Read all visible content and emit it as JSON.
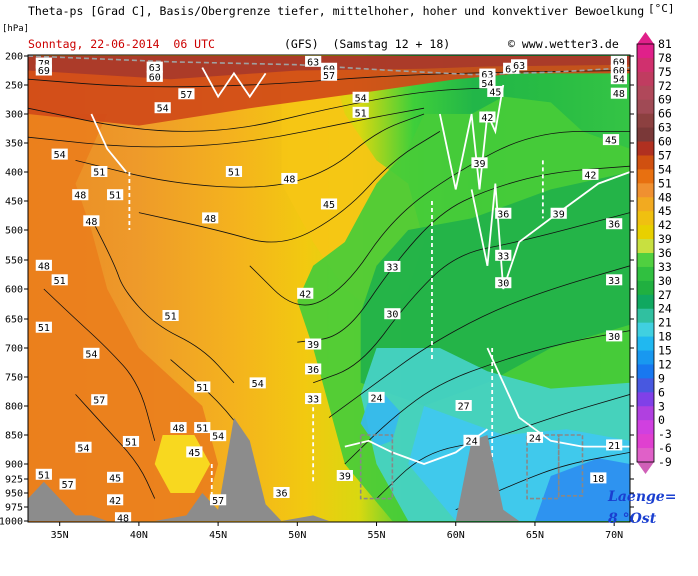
{
  "header": {
    "title": "Theta-ps [Grad C], Basis/Obergrenze tiefer, mittelhoher, hoher und konvektiver Bewoelkung",
    "date_run": "Sonntag, 22-06-2014  06 UTC",
    "model": "(GFS)  (Samstag 12 + 18)",
    "copyright": "© www.wetter3.de",
    "unit": "[°C]",
    "y_unit": "[hPa]"
  },
  "location": {
    "line1": "Laenge=",
    "line2": "8 °Ost"
  },
  "chart_data": {
    "type": "heatmap",
    "title": "Theta-ps [Grad C], Basis/Obergrenze tiefer, mittelhoher, hoher und konvektiver Bewoelkung",
    "xlabel": "",
    "ylabel": "[hPa]",
    "x_ticks": [
      "35N",
      "40N",
      "45N",
      "50N",
      "55N",
      "60N",
      "65N",
      "70N"
    ],
    "x_tick_values": [
      35,
      40,
      45,
      50,
      55,
      60,
      65,
      70
    ],
    "y_ticks": [
      200,
      250,
      300,
      350,
      400,
      450,
      500,
      550,
      600,
      650,
      700,
      750,
      800,
      850,
      900,
      925,
      950,
      975,
      1000
    ],
    "xlim": [
      33,
      71
    ],
    "ylim": [
      1000,
      200
    ],
    "colorbar": {
      "unit": "[°C]",
      "levels": [
        81,
        78,
        75,
        72,
        69,
        66,
        63,
        60,
        57,
        54,
        51,
        48,
        45,
        42,
        39,
        36,
        33,
        30,
        27,
        24,
        21,
        18,
        15,
        12,
        9,
        6,
        3,
        0,
        -3,
        -6,
        -9
      ],
      "colors": [
        "#e0208a",
        "#d0306e",
        "#c03c60",
        "#b0485a",
        "#a04a55",
        "#8c4040",
        "#7a3838",
        "#b03020",
        "#d05010",
        "#e87010",
        "#f09030",
        "#f2aa20",
        "#f0c010",
        "#e8d000",
        "#c8e040",
        "#50d040",
        "#30c040",
        "#20b040",
        "#10a860",
        "#30c0a0",
        "#40d0e0",
        "#20b8f0",
        "#1898f0",
        "#1878f0",
        "#4858e0",
        "#8040e8",
        "#b040e0",
        "#d040e0",
        "#e040d0",
        "#e060c8",
        "#d060b8"
      ]
    },
    "contour_labels": [
      {
        "x": 34.0,
        "p": 213,
        "v": 78
      },
      {
        "x": 34.0,
        "p": 225,
        "v": 69
      },
      {
        "x": 41.0,
        "p": 220,
        "v": 63
      },
      {
        "x": 41.0,
        "p": 236,
        "v": 60
      },
      {
        "x": 43.0,
        "p": 266,
        "v": 57
      },
      {
        "x": 41.5,
        "p": 290,
        "v": 54
      },
      {
        "x": 51.0,
        "p": 210,
        "v": 63
      },
      {
        "x": 52.0,
        "p": 222,
        "v": 60
      },
      {
        "x": 52.0,
        "p": 234,
        "v": 57
      },
      {
        "x": 54.0,
        "p": 272,
        "v": 54
      },
      {
        "x": 54.0,
        "p": 298,
        "v": 51
      },
      {
        "x": 62.0,
        "p": 232,
        "v": 63
      },
      {
        "x": 62.0,
        "p": 247,
        "v": 54
      },
      {
        "x": 62.5,
        "p": 262,
        "v": 45
      },
      {
        "x": 63.5,
        "p": 222,
        "v": 69
      },
      {
        "x": 64.0,
        "p": 216,
        "v": 63
      },
      {
        "x": 70.3,
        "p": 210,
        "v": 69
      },
      {
        "x": 70.3,
        "p": 225,
        "v": 60
      },
      {
        "x": 70.3,
        "p": 240,
        "v": 54
      },
      {
        "x": 70.3,
        "p": 265,
        "v": 48
      },
      {
        "x": 62.0,
        "p": 306,
        "v": 42
      },
      {
        "x": 69.8,
        "p": 345,
        "v": 45
      },
      {
        "x": 68.5,
        "p": 405,
        "v": 42
      },
      {
        "x": 61.5,
        "p": 385,
        "v": 39
      },
      {
        "x": 66.5,
        "p": 472,
        "v": 39
      },
      {
        "x": 63.0,
        "p": 472,
        "v": 36
      },
      {
        "x": 70.0,
        "p": 490,
        "v": 36
      },
      {
        "x": 63.0,
        "p": 543,
        "v": 33
      },
      {
        "x": 70.0,
        "p": 585,
        "v": 33
      },
      {
        "x": 63.0,
        "p": 590,
        "v": 30
      },
      {
        "x": 70.0,
        "p": 680,
        "v": 30
      },
      {
        "x": 35.0,
        "p": 370,
        "v": 54
      },
      {
        "x": 37.5,
        "p": 400,
        "v": 51
      },
      {
        "x": 38.5,
        "p": 440,
        "v": 51
      },
      {
        "x": 37.0,
        "p": 485,
        "v": 48
      },
      {
        "x": 36.3,
        "p": 440,
        "v": 48
      },
      {
        "x": 34.0,
        "p": 560,
        "v": 48
      },
      {
        "x": 35.0,
        "p": 585,
        "v": 51
      },
      {
        "x": 34.0,
        "p": 665,
        "v": 51
      },
      {
        "x": 37.0,
        "p": 710,
        "v": 54
      },
      {
        "x": 42.0,
        "p": 645,
        "v": 51
      },
      {
        "x": 46.0,
        "p": 400,
        "v": 51
      },
      {
        "x": 49.5,
        "p": 412,
        "v": 48
      },
      {
        "x": 44.5,
        "p": 480,
        "v": 48
      },
      {
        "x": 52.0,
        "p": 456,
        "v": 45
      },
      {
        "x": 50.5,
        "p": 608,
        "v": 42
      },
      {
        "x": 56.0,
        "p": 562,
        "v": 33
      },
      {
        "x": 56.0,
        "p": 642,
        "v": 30
      },
      {
        "x": 51.0,
        "p": 694,
        "v": 39
      },
      {
        "x": 51.0,
        "p": 737,
        "v": 36
      },
      {
        "x": 51.0,
        "p": 788,
        "v": 33
      },
      {
        "x": 55.0,
        "p": 786,
        "v": 24
      },
      {
        "x": 60.5,
        "p": 800,
        "v": 27
      },
      {
        "x": 61.0,
        "p": 860,
        "v": 24
      },
      {
        "x": 65.0,
        "p": 855,
        "v": 24
      },
      {
        "x": 70.0,
        "p": 868,
        "v": 21
      },
      {
        "x": 69.0,
        "p": 924,
        "v": 18
      },
      {
        "x": 47.5,
        "p": 761,
        "v": 54
      },
      {
        "x": 44.0,
        "p": 768,
        "v": 51
      },
      {
        "x": 42.5,
        "p": 838,
        "v": 48
      },
      {
        "x": 37.5,
        "p": 790,
        "v": 57
      },
      {
        "x": 44.0,
        "p": 838,
        "v": 51
      },
      {
        "x": 39.5,
        "p": 862,
        "v": 51
      },
      {
        "x": 36.5,
        "p": 872,
        "v": 54
      },
      {
        "x": 43.5,
        "p": 880,
        "v": 45
      },
      {
        "x": 45.0,
        "p": 852,
        "v": 54
      },
      {
        "x": 38.5,
        "p": 923,
        "v": 45
      },
      {
        "x": 35.5,
        "p": 935,
        "v": 57
      },
      {
        "x": 34.0,
        "p": 918,
        "v": 51
      },
      {
        "x": 38.5,
        "p": 963,
        "v": 42
      },
      {
        "x": 39.0,
        "p": 995,
        "v": 48
      },
      {
        "x": 45.0,
        "p": 963,
        "v": 57
      },
      {
        "x": 49.0,
        "p": 950,
        "v": 36
      },
      {
        "x": 53.0,
        "p": 920,
        "v": 39
      }
    ]
  }
}
